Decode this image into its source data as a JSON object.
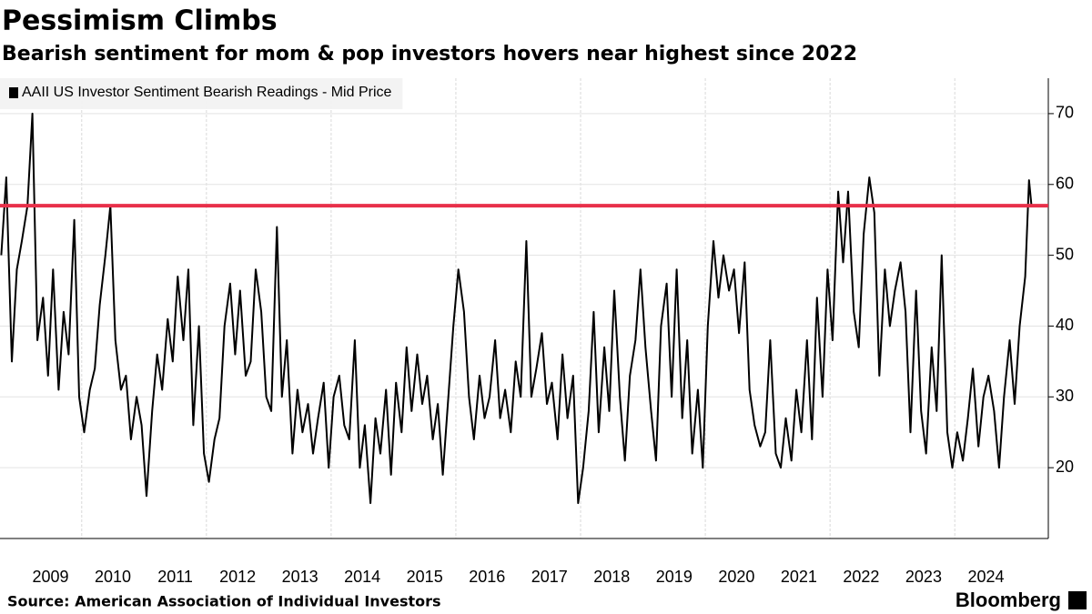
{
  "chart_data": {
    "type": "line",
    "title": "Pessimism Climbs",
    "subtitle": "Bearish sentiment for mom & pop investors hovers near highest since 2022",
    "source": "Source: American Association of Individual Investors",
    "brand": "Bloomberg",
    "series": [
      {
        "name": "AAII US Investor Sentiment Bearish Readings - Mid Price",
        "color": "#000000",
        "values": [
          50,
          61,
          35,
          48,
          52,
          57,
          70,
          38,
          44,
          33,
          48,
          31,
          42,
          36,
          55,
          30,
          25,
          31,
          34,
          43,
          50,
          57,
          38,
          31,
          33,
          24,
          30,
          26,
          16,
          28,
          36,
          31,
          41,
          35,
          47,
          38,
          48,
          26,
          40,
          22,
          18,
          24,
          27,
          40,
          46,
          36,
          45,
          33,
          35,
          48,
          42,
          30,
          28,
          54,
          30,
          38,
          22,
          31,
          25,
          29,
          22,
          27,
          32,
          20,
          30,
          33,
          26,
          24,
          38,
          20,
          26,
          15,
          27,
          22,
          31,
          19,
          32,
          25,
          37,
          28,
          36,
          29,
          33,
          24,
          29,
          19,
          30,
          40,
          48,
          42,
          30,
          24,
          33,
          27,
          30,
          38,
          27,
          31,
          25,
          35,
          30,
          52,
          30,
          34,
          39,
          29,
          32,
          24,
          36,
          27,
          33,
          15,
          20,
          28,
          42,
          25,
          37,
          28,
          45,
          30,
          21,
          33,
          38,
          48,
          37,
          28,
          21,
          40,
          46,
          30,
          48,
          27,
          38,
          22,
          31,
          20,
          40,
          52,
          44,
          50,
          45,
          48,
          39,
          49,
          31,
          26,
          23,
          25,
          38,
          22,
          20,
          27,
          21,
          31,
          25,
          38,
          24,
          44,
          30,
          48,
          38,
          59,
          49,
          59,
          42,
          37,
          53,
          61,
          56,
          33,
          48,
          40,
          45,
          49,
          42,
          25,
          45,
          28,
          22,
          37,
          28,
          50,
          25,
          20,
          25,
          21,
          27,
          34,
          23,
          30,
          33,
          28,
          20,
          30,
          38,
          29,
          40,
          47,
          60.6,
          57
        ]
      }
    ],
    "x": [
      2008.71,
      2008.79,
      2008.88,
      2008.96,
      2009.04,
      2009.13,
      2009.21,
      2009.29,
      2009.38,
      2009.46,
      2009.54,
      2009.63,
      2009.71,
      2009.79,
      2009.88,
      2009.96,
      2010.04,
      2010.13,
      2010.21,
      2010.29,
      2010.38,
      2010.46,
      2010.54,
      2010.63,
      2010.71,
      2010.79,
      2010.88,
      2010.96,
      2011.04,
      2011.13,
      2011.21,
      2011.29,
      2011.38,
      2011.46,
      2011.54,
      2011.63,
      2011.71,
      2011.79,
      2011.88,
      2011.96,
      2012.04,
      2012.13,
      2012.21,
      2012.29,
      2012.38,
      2012.46,
      2012.54,
      2012.63,
      2012.71,
      2012.79,
      2012.88,
      2012.96,
      2013.04,
      2013.13,
      2013.21,
      2013.29,
      2013.38,
      2013.46,
      2013.54,
      2013.63,
      2013.71,
      2013.79,
      2013.88,
      2013.96,
      2014.04,
      2014.13,
      2014.21,
      2014.29,
      2014.38,
      2014.46,
      2014.54,
      2014.63,
      2014.71,
      2014.79,
      2014.88,
      2014.96,
      2015.04,
      2015.13,
      2015.21,
      2015.29,
      2015.38,
      2015.46,
      2015.54,
      2015.63,
      2015.71,
      2015.79,
      2015.88,
      2015.96,
      2016.04,
      2016.13,
      2016.21,
      2016.29,
      2016.38,
      2016.46,
      2016.54,
      2016.63,
      2016.71,
      2016.79,
      2016.88,
      2016.96,
      2017.04,
      2017.13,
      2017.21,
      2017.29,
      2017.38,
      2017.46,
      2017.54,
      2017.63,
      2017.71,
      2017.79,
      2017.88,
      2017.96,
      2018.04,
      2018.13,
      2018.21,
      2018.29,
      2018.38,
      2018.46,
      2018.54,
      2018.63,
      2018.71,
      2018.79,
      2018.88,
      2018.96,
      2019.04,
      2019.13,
      2019.21,
      2019.29,
      2019.38,
      2019.46,
      2019.54,
      2019.63,
      2019.71,
      2019.79,
      2019.88,
      2019.96,
      2020.04,
      2020.13,
      2020.21,
      2020.29,
      2020.38,
      2020.46,
      2020.54,
      2020.63,
      2020.71,
      2020.79,
      2020.88,
      2020.96,
      2021.04,
      2021.13,
      2021.21,
      2021.29,
      2021.38,
      2021.46,
      2021.54,
      2021.63,
      2021.71,
      2021.79,
      2021.88,
      2021.96,
      2022.04,
      2022.13,
      2022.21,
      2022.29,
      2022.38,
      2022.46,
      2022.54,
      2022.63,
      2022.71,
      2022.79,
      2022.88,
      2022.96,
      2023.04,
      2023.13,
      2023.21,
      2023.29,
      2023.38,
      2023.46,
      2023.54,
      2023.63,
      2023.71,
      2023.79,
      2023.88,
      2023.96,
      2024.04,
      2024.13,
      2024.21,
      2024.29,
      2024.38,
      2024.46,
      2024.54,
      2024.63,
      2024.71,
      2024.79,
      2024.88,
      2024.96,
      2025.04,
      2025.13,
      2025.19,
      2025.23
    ],
    "xlim": [
      2008.69,
      2025.5
    ],
    "xticks": [
      {
        "value": 2009.5,
        "label": "2009"
      },
      {
        "value": 2010.5,
        "label": "2010"
      },
      {
        "value": 2011.5,
        "label": "2011"
      },
      {
        "value": 2012.5,
        "label": "2012"
      },
      {
        "value": 2013.5,
        "label": "2013"
      },
      {
        "value": 2014.5,
        "label": "2014"
      },
      {
        "value": 2015.5,
        "label": "2015"
      },
      {
        "value": 2016.5,
        "label": "2016"
      },
      {
        "value": 2017.5,
        "label": "2017"
      },
      {
        "value": 2018.5,
        "label": "2018"
      },
      {
        "value": 2019.5,
        "label": "2019"
      },
      {
        "value": 2020.5,
        "label": "2020"
      },
      {
        "value": 2021.5,
        "label": "2021"
      },
      {
        "value": 2022.5,
        "label": "2022"
      },
      {
        "value": 2023.5,
        "label": "2023"
      },
      {
        "value": 2024.5,
        "label": "2024"
      }
    ],
    "xgrid": [
      2010,
      2012,
      2014,
      2016,
      2018,
      2020,
      2022,
      2024
    ],
    "ylim": [
      10,
      75
    ],
    "yticks": [
      20,
      30,
      40,
      50,
      60,
      70
    ],
    "y_axis_side": "right",
    "grid": true,
    "reference_line": {
      "value": 57,
      "color": "#e8304a"
    },
    "legend": "top-left"
  }
}
